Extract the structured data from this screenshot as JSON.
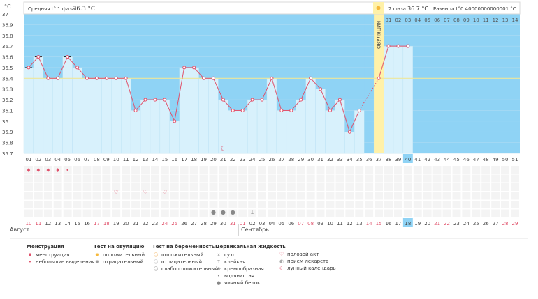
{
  "chart_data": {
    "type": "line",
    "y_unit": "°C",
    "ylim": [
      35.7,
      37.0
    ],
    "yticks": [
      35.7,
      35.8,
      35.9,
      36.0,
      36.1,
      36.2,
      36.3,
      36.4,
      36.5,
      36.6,
      36.7,
      36.8,
      36.9,
      37.0
    ],
    "ytick_labels": [
      "35.7",
      "35.8",
      "35.9",
      "36",
      "36.1",
      "36.2",
      "36.3",
      "36.4",
      "36.5",
      "36.6",
      "36.7",
      "36.8",
      "36.9",
      "37"
    ],
    "cycle_days": [
      "01",
      "02",
      "03",
      "04",
      "05",
      "06",
      "07",
      "08",
      "09",
      "10",
      "11",
      "12",
      "13",
      "14",
      "15",
      "16",
      "17",
      "18",
      "19",
      "20",
      "21",
      "22",
      "23",
      "24",
      "25",
      "26",
      "27",
      "28",
      "29",
      "30",
      "31",
      "32",
      "33",
      "34",
      "35",
      "36",
      "37",
      "38",
      "39",
      "40",
      "41",
      "42",
      "43",
      "44",
      "45",
      "46",
      "47",
      "48",
      "49",
      "50",
      "51"
    ],
    "phase2_days": [
      "01",
      "02",
      "03",
      "04",
      "05",
      "06",
      "07",
      "08",
      "09",
      "10",
      "11",
      "12",
      "13",
      "14"
    ],
    "dates": [
      "10",
      "11",
      "12",
      "13",
      "14",
      "15",
      "16",
      "17",
      "18",
      "19",
      "20",
      "21",
      "22",
      "23",
      "24",
      "25",
      "26",
      "27",
      "28",
      "29",
      "30",
      "31",
      "01",
      "02",
      "03",
      "04",
      "05",
      "06",
      "07",
      "08",
      "09",
      "10",
      "11",
      "12",
      "13",
      "14",
      "15",
      "16",
      "17",
      "18",
      "19",
      "20",
      "21",
      "22",
      "23",
      "24",
      "25",
      "26",
      "27",
      "28",
      "29"
    ],
    "weekend_dates_idx": [
      0,
      1,
      7,
      8,
      14,
      15,
      21,
      22,
      28,
      29,
      35,
      36,
      42,
      43,
      49,
      50
    ],
    "today_index": 39,
    "temperatures": [
      36.5,
      36.6,
      36.4,
      36.4,
      36.6,
      36.5,
      36.4,
      36.4,
      36.4,
      36.4,
      36.4,
      36.1,
      36.2,
      36.2,
      36.2,
      36.0,
      36.5,
      36.5,
      36.4,
      36.4,
      36.2,
      36.1,
      36.1,
      36.2,
      36.2,
      36.4,
      36.1,
      36.1,
      36.2,
      36.4,
      36.3,
      36.1,
      36.2,
      35.9,
      36.1,
      null,
      36.4,
      36.7,
      36.7,
      36.7
    ],
    "ovulation_day_index": 36,
    "ovulation_label": "ОВУЛЯЦИЯ",
    "coverline": 36.4,
    "phase1_avg_label": "Средняя t° 1 фаза",
    "phase1_avg_value": "36.3 °C",
    "phase2_label": "2 фаза",
    "phase2_value": "36.7 °C",
    "diff_label": "Разница t°",
    "diff_value": "0.40000000000001 °C",
    "month_labels": [
      "Август",
      "Сентябрь"
    ],
    "menstruation_heavy_idx": [
      0,
      1,
      2,
      3
    ],
    "menstruation_light_idx": [
      4
    ],
    "intercourse_idx": [
      9,
      12,
      14
    ],
    "egg_white_idx": [
      19,
      20,
      21
    ],
    "sticky_idx": [
      23
    ],
    "moon_idx": 20
  },
  "legend": {
    "groups": [
      {
        "title": "Менструация",
        "items": [
          {
            "icon": "blood-heavy-icon",
            "label": "менструация"
          },
          {
            "icon": "blood-drop-icon",
            "label": "небольшие выделения"
          }
        ]
      },
      {
        "title": "Тест на овуляцию",
        "items": [
          {
            "icon": "sun-icon",
            "label": "положительный"
          },
          {
            "icon": "sun-gray-icon",
            "label": "отрицательный"
          }
        ]
      },
      {
        "title": "Тест на беременность",
        "items": [
          {
            "icon": "test-positive-icon",
            "label": "положительный"
          },
          {
            "icon": "test-negative-icon",
            "label": "отрицательный"
          },
          {
            "icon": "test-weak-icon",
            "label": "слабоположительный"
          }
        ]
      },
      {
        "title": "Цервикальная жидкость",
        "items": [
          {
            "icon": "cross-icon",
            "label": "сухо"
          },
          {
            "icon": "sticky-icon",
            "label": "клейкая"
          },
          {
            "icon": "creamy-icon",
            "label": "кремообразная"
          },
          {
            "icon": "watery-drop-icon",
            "label": "водянистая"
          },
          {
            "icon": "egg-white-drop-icon",
            "label": "яичный белок"
          }
        ]
      },
      {
        "title": "",
        "items": [
          {
            "icon": "heart-icon",
            "label": "половой акт"
          },
          {
            "icon": "pill-icon",
            "label": "прием лекарств"
          },
          {
            "icon": "moon-icon",
            "label": "лунный календарь"
          }
        ]
      }
    ]
  },
  "colors": {
    "phase_bg": "#8fd3f5",
    "plot_bg": "#cdeaf8",
    "bar": "#d8f1fc",
    "line": "#e0506a",
    "ovulation": "#fff1a8",
    "coverline": "#f0e89a",
    "weekend": "#e0506a"
  }
}
